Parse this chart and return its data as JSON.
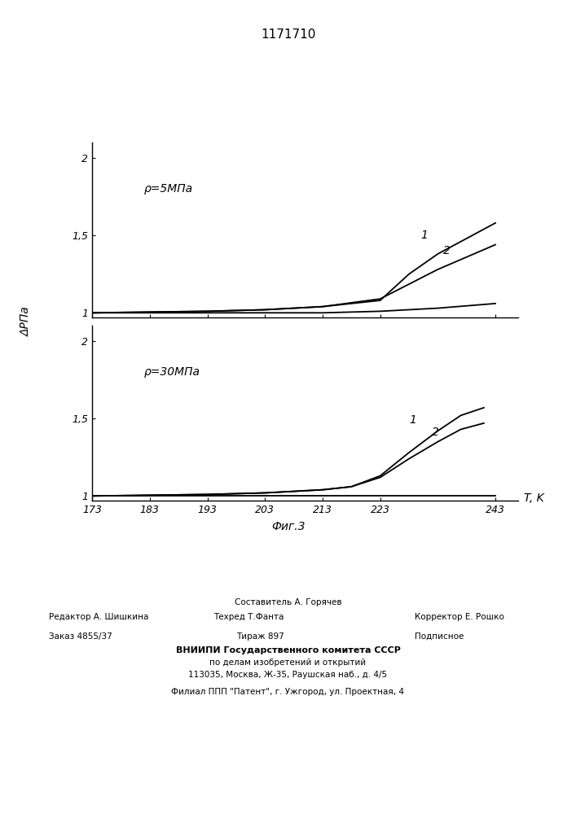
{
  "title": "1171710",
  "fig_caption": "Фиг.3",
  "xlabel": "T, K",
  "ylabel": "ΔРПа",
  "xticks": [
    173,
    183,
    193,
    203,
    213,
    223,
    243
  ],
  "xlim": [
    173,
    247
  ],
  "ylim": [
    0.97,
    2.1
  ],
  "top_label": "ρ=5МПа",
  "bottom_label": "ρ=30МПа",
  "top_curve1_x": [
    173,
    183,
    193,
    203,
    213,
    223,
    228,
    233,
    243
  ],
  "top_curve1_y": [
    1.0,
    1.005,
    1.01,
    1.02,
    1.04,
    1.08,
    1.25,
    1.38,
    1.58
  ],
  "top_curve2_x": [
    173,
    183,
    193,
    203,
    213,
    223,
    233,
    243
  ],
  "top_curve2_y": [
    1.0,
    1.005,
    1.01,
    1.02,
    1.04,
    1.09,
    1.28,
    1.44
  ],
  "top_curve3_x": [
    173,
    183,
    193,
    203,
    213,
    223,
    233,
    243
  ],
  "top_curve3_y": [
    1.0,
    1.0,
    1.0,
    1.0,
    1.0,
    1.01,
    1.03,
    1.06
  ],
  "bot_curve1_x": [
    173,
    183,
    193,
    203,
    213,
    218,
    223,
    228,
    233,
    237,
    241
  ],
  "bot_curve1_y": [
    1.0,
    1.005,
    1.01,
    1.02,
    1.04,
    1.06,
    1.13,
    1.28,
    1.42,
    1.52,
    1.57
  ],
  "bot_curve2_x": [
    173,
    183,
    193,
    203,
    213,
    218,
    223,
    228,
    233,
    237,
    241
  ],
  "bot_curve2_y": [
    1.0,
    1.005,
    1.01,
    1.02,
    1.04,
    1.06,
    1.12,
    1.24,
    1.35,
    1.43,
    1.47
  ],
  "bot_curve3_x": [
    173,
    183,
    193,
    203,
    213,
    223,
    233,
    243
  ],
  "bot_curve3_y": [
    1.0,
    1.0,
    1.0,
    1.0,
    1.0,
    1.0,
    1.0,
    1.0
  ],
  "line_color": "#000000",
  "bg_color": "#ffffff",
  "footer_sestavitel": "Составитель А. Горячев",
  "footer_redaktor": "Редактор А. Шишкина",
  "footer_tehred": "Техред Т.Фанта",
  "footer_korrektor": "Корректор Е. Рошко",
  "footer_zakaz": "Заказ 4855/37",
  "footer_tirazh": "Тираж 897",
  "footer_podpisnoe": "Подписное",
  "footer_vniipи": "ВНИИПИ Государственного комитета СССР",
  "footer_po_delam": "по делам изобретений и открытий",
  "footer_address": "113035, Москва, Ж-35, Раушская наб., д. 4/5",
  "footer_filial": "Филиал ППП \"Патент\", г. Ужгород, ул. Проектная, 4"
}
